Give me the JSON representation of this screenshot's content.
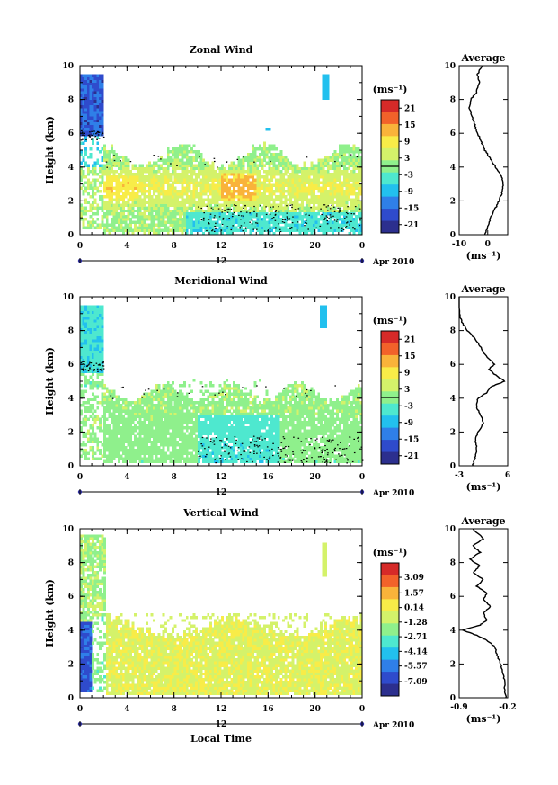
{
  "chart_data": [
    {
      "type": "heatmap",
      "title": "Zonal Wind",
      "ylabel": "Height (km)",
      "unit": "(ms⁻¹)",
      "x_ticks": [
        "0",
        "4",
        "8",
        "12",
        "16",
        "20",
        "0"
      ],
      "y_ticks": [
        "0",
        "2",
        "4",
        "6",
        "8",
        "10"
      ],
      "xlim": [
        0,
        24
      ],
      "ylim": [
        0,
        10
      ],
      "date_axis": {
        "day_label": "12",
        "month_label": "Apr 2010"
      },
      "colorbar": {
        "range": [
          -24,
          24
        ],
        "ticks": [
          "21",
          "15",
          "9",
          "3",
          "-3",
          "-9",
          "-15",
          "-21"
        ],
        "contour_level": 0
      },
      "average_profile": {
        "title": "Average",
        "unit": "(ms⁻¹)",
        "xlim": [
          -10,
          7
        ],
        "x_ticks": [
          "-10",
          "0"
        ],
        "y_ticks": [
          "0",
          "2",
          "4",
          "6",
          "8",
          "10"
        ],
        "points": [
          [
            -1,
            0.0
          ],
          [
            0,
            0.5
          ],
          [
            1,
            1.0
          ],
          [
            2.5,
            1.5
          ],
          [
            4,
            2.0
          ],
          [
            5,
            2.5
          ],
          [
            5.5,
            3.0
          ],
          [
            5,
            3.4
          ],
          [
            3.5,
            3.8
          ],
          [
            2,
            4.2
          ],
          [
            0.5,
            4.6
          ],
          [
            -1,
            5.0
          ],
          [
            -2,
            5.4
          ],
          [
            -3,
            5.8
          ],
          [
            -4,
            6.2
          ],
          [
            -4.5,
            6.5
          ],
          [
            -5.5,
            7.0
          ],
          [
            -6.5,
            7.5
          ],
          [
            -6,
            8.0
          ],
          [
            -4,
            8.4
          ],
          [
            -3,
            9.0
          ],
          [
            -3.5,
            9.5
          ],
          [
            -2,
            10.0
          ]
        ]
      }
    },
    {
      "type": "heatmap",
      "title": "Meridional Wind",
      "ylabel": "Height (km)",
      "unit": "(ms⁻¹)",
      "x_ticks": [
        "0",
        "4",
        "8",
        "12",
        "16",
        "20",
        "0"
      ],
      "y_ticks": [
        "0",
        "2",
        "4",
        "6",
        "8",
        "10"
      ],
      "xlim": [
        0,
        24
      ],
      "ylim": [
        0,
        10
      ],
      "date_axis": {
        "day_label": "12",
        "month_label": "Apr 2010"
      },
      "colorbar": {
        "range": [
          -24,
          24
        ],
        "ticks": [
          "21",
          "15",
          "9",
          "3",
          "-3",
          "-9",
          "-15",
          "-21"
        ],
        "contour_level": 0
      },
      "average_profile": {
        "title": "Average",
        "unit": "(ms⁻¹)",
        "xlim": [
          -3,
          6
        ],
        "x_ticks": [
          "-3",
          "6"
        ],
        "y_ticks": [
          "0",
          "2",
          "4",
          "6",
          "8",
          "10"
        ],
        "points": [
          [
            -0.5,
            0.0
          ],
          [
            0.0,
            0.5
          ],
          [
            0.3,
            1.0
          ],
          [
            0.0,
            1.5
          ],
          [
            0.5,
            2.0
          ],
          [
            1.5,
            2.5
          ],
          [
            1.0,
            3.0
          ],
          [
            0.2,
            3.5
          ],
          [
            0.5,
            4.0
          ],
          [
            2.0,
            4.3
          ],
          [
            3.0,
            4.7
          ],
          [
            5.5,
            5.0
          ],
          [
            4.0,
            5.3
          ],
          [
            2.5,
            5.7
          ],
          [
            3.5,
            6.0
          ],
          [
            2.0,
            6.5
          ],
          [
            1.0,
            7.0
          ],
          [
            0.0,
            7.5
          ],
          [
            -1.5,
            8.0
          ],
          [
            -2.5,
            8.5
          ],
          [
            -3.0,
            9.0
          ],
          [
            -3.0,
            10.0
          ]
        ]
      }
    },
    {
      "type": "heatmap",
      "title": "Vertical Wind",
      "ylabel": "Height (km)",
      "xlabel": "Local Time",
      "unit": "(ms⁻¹)",
      "x_ticks": [
        "0",
        "4",
        "8",
        "12",
        "16",
        "20",
        "0"
      ],
      "y_ticks": [
        "0",
        "2",
        "4",
        "6",
        "8",
        "10"
      ],
      "xlim": [
        0,
        24
      ],
      "ylim": [
        0,
        10
      ],
      "date_axis": {
        "day_label": "12",
        "month_label": "Apr 2010"
      },
      "colorbar": {
        "range": [
          -8.5,
          4.5
        ],
        "ticks": [
          "3.09",
          "1.57",
          "0.14",
          "-1.28",
          "-2.71",
          "-4.14",
          "-5.57",
          "-7.09"
        ]
      },
      "average_profile": {
        "title": "Average",
        "unit": "(ms⁻¹)",
        "xlim": [
          -0.9,
          -0.2
        ],
        "x_ticks": [
          "-0.9",
          "-0.2"
        ],
        "y_ticks": [
          "0",
          "2",
          "4",
          "6",
          "8",
          "10"
        ],
        "points": [
          [
            -0.22,
            0.0
          ],
          [
            -0.25,
            0.5
          ],
          [
            -0.24,
            1.0
          ],
          [
            -0.28,
            1.5
          ],
          [
            -0.3,
            2.0
          ],
          [
            -0.35,
            2.5
          ],
          [
            -0.38,
            3.0
          ],
          [
            -0.5,
            3.4
          ],
          [
            -0.65,
            3.7
          ],
          [
            -0.85,
            4.0
          ],
          [
            -0.6,
            4.3
          ],
          [
            -0.5,
            4.6
          ],
          [
            -0.55,
            5.0
          ],
          [
            -0.45,
            5.4
          ],
          [
            -0.55,
            5.8
          ],
          [
            -0.5,
            6.2
          ],
          [
            -0.65,
            6.6
          ],
          [
            -0.55,
            7.0
          ],
          [
            -0.7,
            7.4
          ],
          [
            -0.6,
            7.8
          ],
          [
            -0.75,
            8.2
          ],
          [
            -0.6,
            8.6
          ],
          [
            -0.7,
            9.0
          ],
          [
            -0.55,
            9.4
          ],
          [
            -0.7,
            10.0
          ]
        ]
      }
    }
  ],
  "colors": {
    "palette": [
      "#2c2f8e",
      "#2f4bcc",
      "#2f7fe8",
      "#22c0ee",
      "#4ee8cf",
      "#8ff08c",
      "#d4f26a",
      "#f8ec48",
      "#f9b33a",
      "#f2622a",
      "#d62a28"
    ]
  }
}
